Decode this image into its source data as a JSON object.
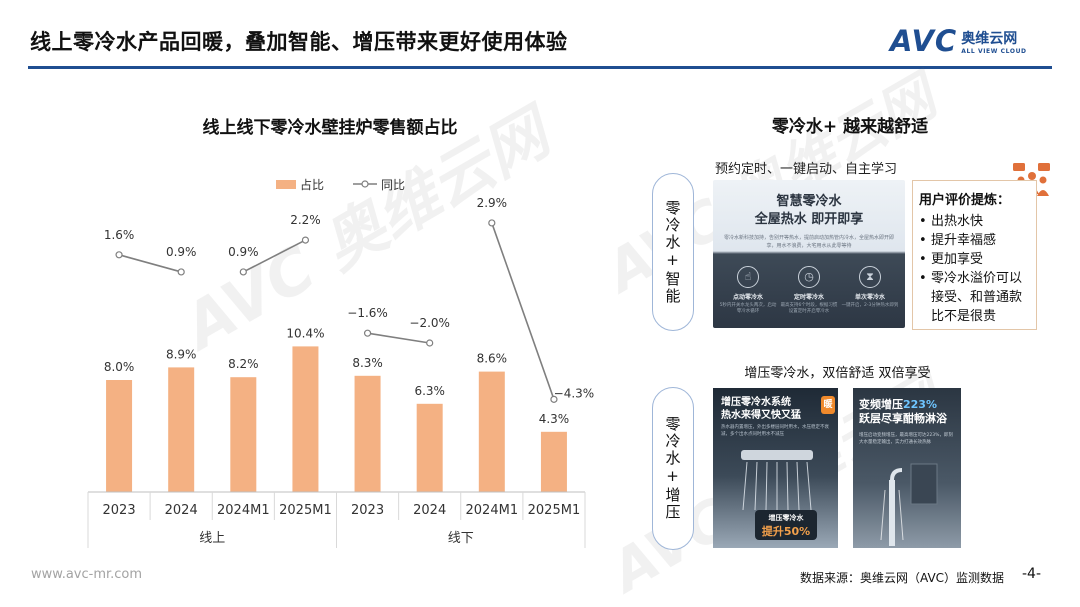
{
  "header": {
    "title": "线上零冷水产品回暖，叠加智能、增压带来更好使用体验",
    "logo_avc": "AVC",
    "logo_cn": "奥维云网",
    "logo_en": "ALL VIEW CLOUD",
    "brand_color": "#1f4e91"
  },
  "chart_data": {
    "type": "bar+line",
    "title": "线上线下零冷水壁挂炉零售额占比",
    "categories": [
      "2023",
      "2024",
      "2024M1",
      "2025M1",
      "2023",
      "2024",
      "2024M1",
      "2025M1"
    ],
    "groups": [
      {
        "label": "线上",
        "categories": [
          "2023",
          "2024",
          "2024M1",
          "2025M1"
        ]
      },
      {
        "label": "线下",
        "categories": [
          "2023",
          "2024",
          "2024M1",
          "2025M1"
        ]
      }
    ],
    "series": [
      {
        "name": "占比",
        "type": "bar",
        "color": "#f4b183",
        "values": [
          8.0,
          8.9,
          8.2,
          10.4,
          8.3,
          6.3,
          8.6,
          4.3
        ],
        "labels": [
          "8.0%",
          "8.9%",
          "8.2%",
          "10.4%",
          "8.3%",
          "6.3%",
          "8.6%",
          "4.3%"
        ]
      },
      {
        "name": "同比",
        "type": "line",
        "color": "#7f7f7f",
        "values": [
          1.6,
          0.9,
          0.9,
          2.2,
          -1.6,
          -2.0,
          2.9,
          -4.3
        ],
        "labels": [
          "1.6%",
          "0.9%",
          "0.9%",
          "2.2%",
          "−1.6%",
          "−2.0%",
          "2.9%",
          "−4.3%"
        ],
        "segments": [
          [
            0,
            1
          ],
          [
            2,
            3
          ],
          [
            4,
            5
          ],
          [
            6,
            7
          ]
        ]
      }
    ],
    "legend": "top",
    "grid": false
  },
  "right": {
    "title": "零冷水+ 越来越舒适",
    "pill1": "零冷水+智能",
    "pill2": "零冷水+增压",
    "caption1": "预约定时、一键启动、自主学习",
    "img1": {
      "h1": "智慧零冷水",
      "h2": "全屋热水 即开即享",
      "desc": "零冷水新科技加持，告别开等热水，提前启动加热管内冷水，全屋热水即开即享，用水不浪费，大宅用水从此零等待",
      "features": [
        {
          "label": "点动零冷水",
          "desc": "5秒内开关水龙头两次，启动零冷水循环",
          "icon": "hand-icon"
        },
        {
          "label": "定时零冷水",
          "desc": "最高支持6个时段，根据习惯设置定时开启零冷水",
          "icon": "clock-icon"
        },
        {
          "label": "单次零冷水",
          "desc": "一键开启，2-3分钟热水即到",
          "icon": "timer-icon"
        }
      ]
    },
    "review": {
      "heading": "用户评价提炼：",
      "items": [
        "出热水快",
        "提升幸福感",
        "更加享受",
        "零冷水溢价可以接受、和普通款比不是很贵"
      ]
    },
    "caption2": "增压零冷水，双倍舒适 双倍享受",
    "img2": {
      "t1": "增压零冷水系统",
      "t2": "热水来得又快又猛",
      "badge": "暖",
      "small": "热水器内置增压，外出多楼层同时用水，水压稳定不衰减，多个出水点同时用水不减压",
      "pill_a": "增压零冷水",
      "pill_b": "提升50%"
    },
    "img3": {
      "t1a": "变频增压",
      "t1b": "223%",
      "t2": "跃层尽享酣畅淋浴",
      "small": "增压启动变频增压，最高增压可达223%，即刻大水量稳定输出，实力打通长效热脉"
    }
  },
  "footer": {
    "url": "www.avc-mr.com",
    "source": "数据来源：奥维云网（AVC）监测数据",
    "page": "-4-"
  }
}
